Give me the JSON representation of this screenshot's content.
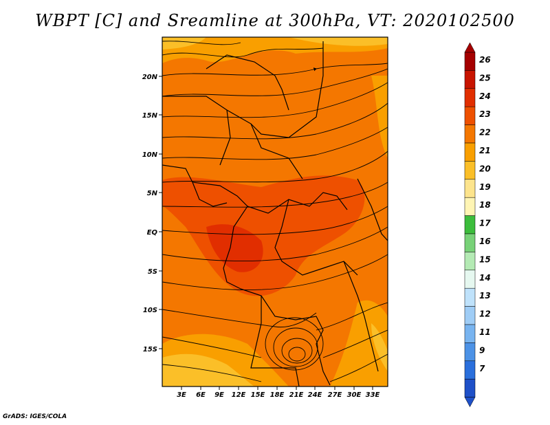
{
  "title": "WBPT [C] and Sreamline at 300hPa, VT: 2020102500",
  "footer": "GrADS: IGES/COLA",
  "map": {
    "lat_labels": [
      "20N",
      "15N",
      "10N",
      "5N",
      "EQ",
      "5S",
      "10S",
      "15S"
    ],
    "lon_labels": [
      "3E",
      "6E",
      "9E",
      "12E",
      "15E",
      "18E",
      "21E",
      "24E",
      "27E",
      "30E",
      "33E"
    ]
  },
  "colorbar": {
    "labels": [
      "26",
      "25",
      "24",
      "23",
      "22",
      "21",
      "20",
      "19",
      "18",
      "17",
      "16",
      "15",
      "14",
      "13",
      "12",
      "11",
      "9",
      "7"
    ],
    "colors": [
      "#a50000",
      "#c81400",
      "#e12e00",
      "#ee5000",
      "#f47700",
      "#f99f00",
      "#fbbf28",
      "#fde48c",
      "#fff5b4",
      "#3cbd3c",
      "#78d278",
      "#b4eab4",
      "#e6f8f0",
      "#bfe2fb",
      "#9fcdf6",
      "#78b4f0",
      "#4c92e6",
      "#2a6fdc",
      "#1e50c8"
    ]
  }
}
